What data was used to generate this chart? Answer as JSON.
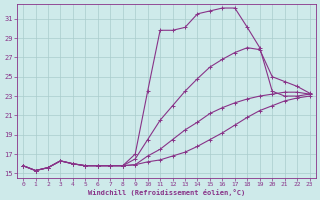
{
  "xlabel": "Windchill (Refroidissement éolien,°C)",
  "bg_color": "#ceeaea",
  "grid_color": "#aacccc",
  "line_color": "#883388",
  "xlim": [
    -0.5,
    23.5
  ],
  "ylim": [
    14.5,
    32.5
  ],
  "xticks": [
    0,
    1,
    2,
    3,
    4,
    5,
    6,
    7,
    8,
    9,
    10,
    11,
    12,
    13,
    14,
    15,
    16,
    17,
    18,
    19,
    20,
    21,
    22,
    23
  ],
  "yticks": [
    15,
    17,
    19,
    21,
    23,
    25,
    27,
    29,
    31
  ],
  "curves": [
    {
      "x": [
        0,
        1,
        2,
        3,
        4,
        5,
        6,
        7,
        8,
        9,
        10,
        11,
        12,
        13,
        14,
        15,
        16,
        17,
        18,
        19,
        20,
        21,
        22,
        23
      ],
      "y": [
        15.8,
        15.3,
        15.6,
        16.3,
        16.0,
        15.8,
        15.8,
        15.8,
        15.8,
        15.9,
        16.2,
        16.4,
        16.8,
        17.2,
        17.8,
        18.5,
        19.2,
        20.0,
        20.8,
        21.5,
        22.0,
        22.5,
        22.8,
        23.0
      ]
    },
    {
      "x": [
        0,
        1,
        2,
        3,
        4,
        5,
        6,
        7,
        8,
        9,
        10,
        11,
        12,
        13,
        14,
        15,
        16,
        17,
        18,
        19,
        20,
        21,
        22,
        23
      ],
      "y": [
        15.8,
        15.3,
        15.6,
        16.3,
        16.0,
        15.8,
        15.8,
        15.8,
        15.8,
        15.9,
        16.8,
        17.5,
        18.5,
        19.5,
        20.3,
        21.2,
        21.8,
        22.3,
        22.7,
        23.0,
        23.2,
        23.4,
        23.4,
        23.2
      ]
    },
    {
      "x": [
        0,
        1,
        2,
        3,
        4,
        5,
        6,
        7,
        8,
        9,
        10,
        11,
        12,
        13,
        14,
        15,
        16,
        17,
        18,
        19,
        20,
        21,
        22,
        23
      ],
      "y": [
        15.8,
        15.3,
        15.6,
        16.3,
        16.0,
        15.8,
        15.8,
        15.8,
        15.8,
        16.5,
        18.5,
        20.5,
        22.0,
        23.5,
        24.8,
        26.0,
        26.8,
        27.5,
        28.0,
        27.8,
        25.0,
        24.5,
        24.0,
        23.3
      ]
    },
    {
      "x": [
        0,
        1,
        2,
        3,
        4,
        5,
        6,
        7,
        8,
        9,
        10,
        11,
        12,
        13,
        14,
        15,
        16,
        17,
        18,
        19,
        20,
        21,
        22,
        23
      ],
      "y": [
        15.8,
        15.3,
        15.6,
        16.3,
        16.0,
        15.8,
        15.8,
        15.8,
        15.8,
        17.0,
        23.5,
        29.8,
        29.8,
        30.1,
        31.5,
        31.8,
        32.1,
        32.1,
        30.1,
        28.0,
        23.5,
        23.0,
        23.0,
        23.2
      ]
    }
  ]
}
